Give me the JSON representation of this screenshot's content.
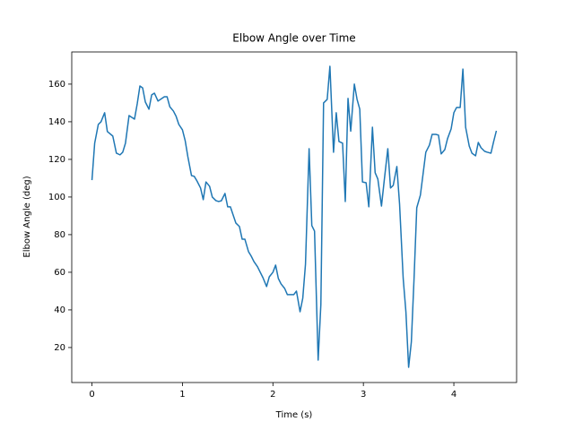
{
  "chart_data": {
    "type": "line",
    "title": "Elbow Angle over Time",
    "x_label": "Time (s)",
    "y_label": "Elbow Angle (deg)",
    "color": "#1f77b4",
    "x": [
      0,
      0.03,
      0.07,
      0.1,
      0.14,
      0.17,
      0.23,
      0.27,
      0.31,
      0.34,
      0.37,
      0.41,
      0.47,
      0.5,
      0.53,
      0.56,
      0.59,
      0.63,
      0.66,
      0.69,
      0.73,
      0.76,
      0.8,
      0.83,
      0.86,
      0.9,
      0.93,
      0.96,
      1.0,
      1.03,
      1.06,
      1.1,
      1.13,
      1.16,
      1.2,
      1.23,
      1.26,
      1.3,
      1.33,
      1.37,
      1.4,
      1.43,
      1.47,
      1.5,
      1.53,
      1.56,
      1.59,
      1.63,
      1.66,
      1.69,
      1.73,
      1.76,
      1.79,
      1.83,
      1.86,
      1.89,
      1.93,
      1.96,
      2.0,
      2.03,
      2.06,
      2.09,
      2.13,
      2.16,
      2.2,
      2.23,
      2.26,
      2.3,
      2.33,
      2.36,
      2.4,
      2.43,
      2.46,
      2.5,
      2.53,
      2.56,
      2.6,
      2.63,
      2.67,
      2.7,
      2.73,
      2.77,
      2.8,
      2.83,
      2.86,
      2.9,
      2.93,
      2.96,
      2.99,
      3.03,
      3.06,
      3.1,
      3.13,
      3.16,
      3.2,
      3.23,
      3.27,
      3.3,
      3.33,
      3.37,
      3.4,
      3.44,
      3.47,
      3.5,
      3.53,
      3.56,
      3.59,
      3.63,
      3.66,
      3.69,
      3.73,
      3.76,
      3.8,
      3.83,
      3.86,
      3.9,
      3.93,
      3.97,
      4.0,
      4.03,
      4.07,
      4.1,
      4.13,
      4.17,
      4.2,
      4.24,
      4.27,
      4.3,
      4.34,
      4.37,
      4.41,
      4.44,
      4.47
    ],
    "values": [
      109,
      128.6,
      138.6,
      140,
      144.8,
      134.8,
      132.4,
      123.3,
      122.4,
      123.8,
      128.6,
      143.3,
      141.4,
      149.5,
      159,
      158,
      150.5,
      146.7,
      154.3,
      155.2,
      151,
      152,
      153.3,
      153.3,
      148,
      145.7,
      142.9,
      138.6,
      135.7,
      130,
      121.4,
      111.4,
      111,
      108.6,
      104.8,
      98.6,
      108,
      105.7,
      100,
      98.1,
      97.6,
      98,
      101.9,
      94.8,
      94.8,
      90.5,
      86.2,
      84.3,
      77.6,
      77.6,
      71,
      68.6,
      65.7,
      62.9,
      60,
      57.1,
      52.4,
      57.6,
      60,
      63.8,
      56.7,
      53.8,
      51.4,
      48.1,
      48.1,
      48.1,
      50,
      39,
      46.2,
      64.3,
      125.7,
      84.8,
      81.9,
      13.3,
      42.9,
      150,
      151.9,
      169.5,
      123.8,
      144.8,
      129.5,
      128.6,
      97.6,
      152.4,
      135,
      160,
      151.9,
      146.7,
      108,
      107.6,
      94.8,
      137.1,
      112.9,
      109.5,
      95.2,
      108.6,
      125.7,
      104.8,
      106.2,
      116.2,
      96.2,
      56.7,
      39,
      9.5,
      22.9,
      56.7,
      94.3,
      101,
      112.4,
      123.8,
      127.6,
      133.3,
      133.3,
      132.9,
      122.9,
      125.2,
      131,
      136.2,
      144.8,
      147.6,
      147.6,
      168,
      137.1,
      127.1,
      123.3,
      121.9,
      129,
      126.2,
      124.3,
      123.8,
      123.3,
      129.5,
      135.2
    ],
    "xlim": [
      -0.2235,
      4.6935
    ],
    "xticks": [
      0,
      1,
      2,
      3,
      4
    ],
    "ylim": [
      1.4,
      177.1
    ],
    "yticks": [
      20,
      40,
      60,
      80,
      100,
      120,
      140,
      160
    ]
  }
}
